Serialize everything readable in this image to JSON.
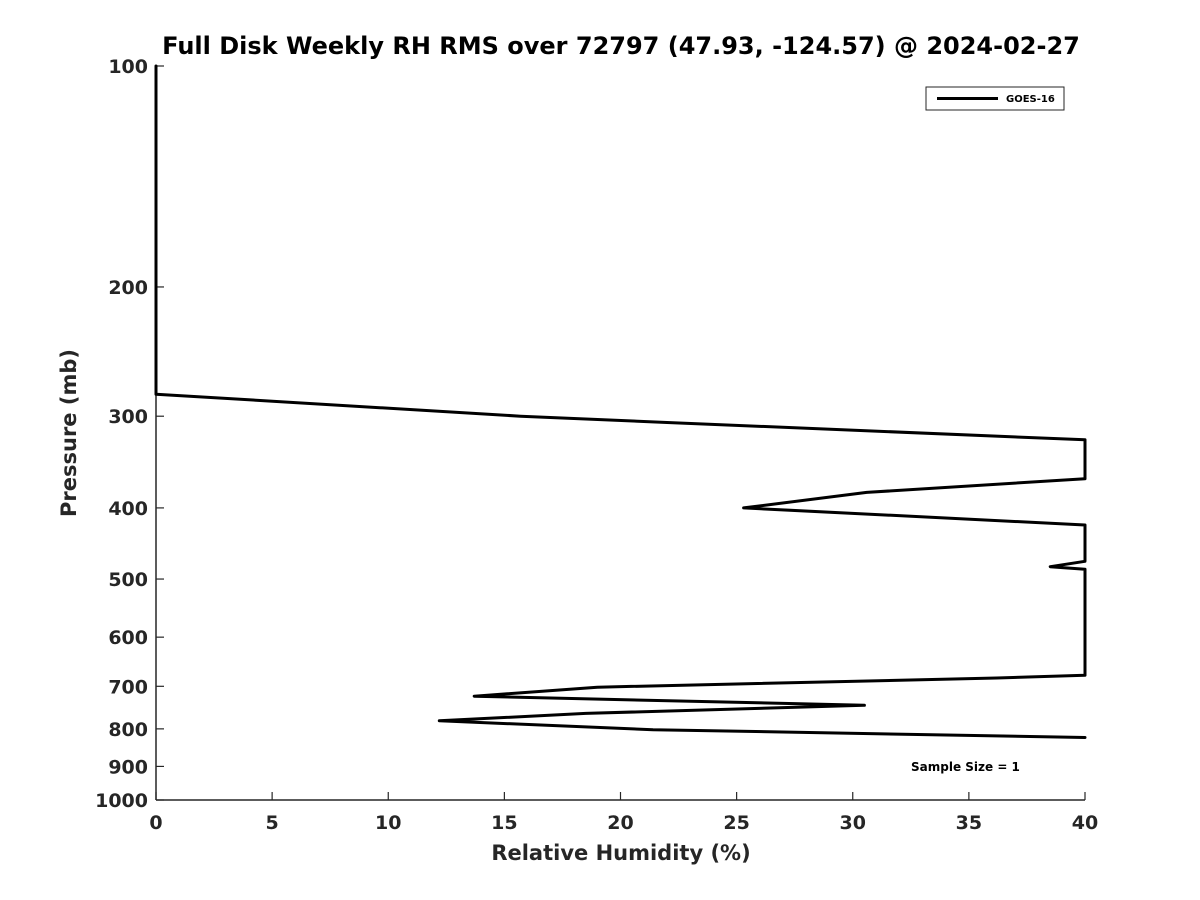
{
  "chart_data": {
    "type": "line",
    "title": "Full Disk Weekly RH RMS over 72797 (47.93, -124.57) @ 2024-02-27",
    "xlabel": "Relative Humidity (%)",
    "ylabel": "Pressure (mb)",
    "xlim": [
      0,
      40
    ],
    "ylim": [
      100,
      1000
    ],
    "y_scale": "log",
    "y_reversed": true,
    "grid": false,
    "x_ticks": [
      0,
      5,
      10,
      15,
      20,
      25,
      30,
      35,
      40
    ],
    "y_ticks": [
      100,
      200,
      300,
      400,
      500,
      600,
      700,
      800,
      900,
      1000
    ],
    "legend": {
      "placement": "top-right",
      "entries": [
        "GOES-16"
      ]
    },
    "annotation": "Sample Size = 1",
    "series": [
      {
        "name": "GOES-16",
        "color": "#000000",
        "points": [
          {
            "x": 0.0,
            "p": 100
          },
          {
            "x": 0.0,
            "p": 150
          },
          {
            "x": 0.0,
            "p": 250
          },
          {
            "x": 0.0,
            "p": 280
          },
          {
            "x": 15.7,
            "p": 300
          },
          {
            "x": 22.0,
            "p": 306
          },
          {
            "x": 40.0,
            "p": 323
          },
          {
            "x": 40.0,
            "p": 365
          },
          {
            "x": 30.6,
            "p": 381
          },
          {
            "x": 25.3,
            "p": 400
          },
          {
            "x": 40.0,
            "p": 422
          },
          {
            "x": 40.0,
            "p": 473
          },
          {
            "x": 38.5,
            "p": 481
          },
          {
            "x": 40.0,
            "p": 485
          },
          {
            "x": 40.0,
            "p": 676
          },
          {
            "x": 36.2,
            "p": 682
          },
          {
            "x": 19.0,
            "p": 702
          },
          {
            "x": 13.7,
            "p": 722
          },
          {
            "x": 30.5,
            "p": 743
          },
          {
            "x": 18.5,
            "p": 762
          },
          {
            "x": 12.2,
            "p": 780
          },
          {
            "x": 21.4,
            "p": 802
          },
          {
            "x": 40.0,
            "p": 822
          }
        ]
      }
    ]
  }
}
